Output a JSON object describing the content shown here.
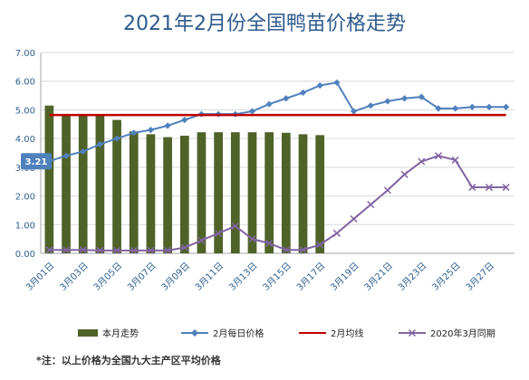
{
  "chart_data": {
    "type": "bar+line",
    "title": "2021年2月份全国鸭苗价格走势",
    "categories": [
      "3月01日",
      "3月02日",
      "3月03日",
      "3月04日",
      "3月05日",
      "3月06日",
      "3月07日",
      "3月08日",
      "3月09日",
      "3月10日",
      "3月11日",
      "3月12日",
      "3月13日",
      "3月14日",
      "3月15日",
      "3月16日",
      "3月17日",
      "3月18日",
      "3月19日",
      "3月20日",
      "3月21日",
      "3月22日",
      "3月23日",
      "3月24日",
      "3月25日",
      "3月26日",
      "3月27日",
      "3月28日"
    ],
    "x_tick_labels": [
      "3月01日",
      "3月03日",
      "3月05日",
      "3月07日",
      "3月09日",
      "3月11日",
      "3月13日",
      "3月15日",
      "3月17日",
      "3月19日",
      "3月21日",
      "3月23日",
      "3月25日",
      "3月27日"
    ],
    "ylim": [
      0,
      7
    ],
    "y_ticks": [
      "0.00",
      "1.00",
      "2.00",
      "3.00",
      "4.00",
      "5.00",
      "6.00",
      "7.00"
    ],
    "grid": true,
    "legend_position": "bottom",
    "series": [
      {
        "name": "本月走势",
        "type": "bar",
        "color": "#4f6228",
        "values": [
          5.15,
          4.85,
          4.85,
          4.85,
          4.65,
          4.25,
          4.15,
          4.05,
          4.1,
          4.22,
          4.22,
          4.22,
          4.22,
          4.22,
          4.2,
          4.15,
          4.12,
          null,
          null,
          null,
          null,
          null,
          null,
          null,
          null,
          null,
          null,
          null
        ]
      },
      {
        "name": "2月每日价格",
        "type": "line",
        "color": "#4f81bd",
        "marker": "diamond",
        "values": [
          3.21,
          3.4,
          3.55,
          3.8,
          4.0,
          4.2,
          4.3,
          4.45,
          4.65,
          4.85,
          4.85,
          4.85,
          4.95,
          5.2,
          5.4,
          5.6,
          5.85,
          5.95,
          4.95,
          5.15,
          5.3,
          5.4,
          5.45,
          5.05,
          5.05,
          5.1,
          5.1,
          5.1
        ]
      },
      {
        "name": "2月均线",
        "type": "line",
        "color": "#c00000",
        "values": [
          4.82,
          4.82,
          4.82,
          4.82,
          4.82,
          4.82,
          4.82,
          4.82,
          4.82,
          4.82,
          4.82,
          4.82,
          4.82,
          4.82,
          4.82,
          4.82,
          4.82,
          4.82,
          4.82,
          4.82,
          4.82,
          4.82,
          4.82,
          4.82,
          4.82,
          4.82,
          4.82,
          4.82
        ]
      },
      {
        "name": "2020年3月同期",
        "type": "line",
        "color": "#8064a2",
        "marker": "x",
        "values": [
          0.12,
          0.12,
          0.12,
          0.1,
          0.1,
          0.1,
          0.1,
          0.1,
          0.2,
          0.45,
          0.7,
          0.95,
          0.5,
          0.35,
          0.12,
          0.12,
          0.3,
          0.7,
          1.2,
          1.7,
          2.2,
          2.75,
          3.2,
          3.4,
          3.25,
          2.3,
          2.3,
          2.3
        ]
      }
    ],
    "annotations": [
      {
        "text": "3.21",
        "category": "3月01日"
      }
    ],
    "footnote": "*注：以上价格为全国九大主产区平均价格"
  }
}
